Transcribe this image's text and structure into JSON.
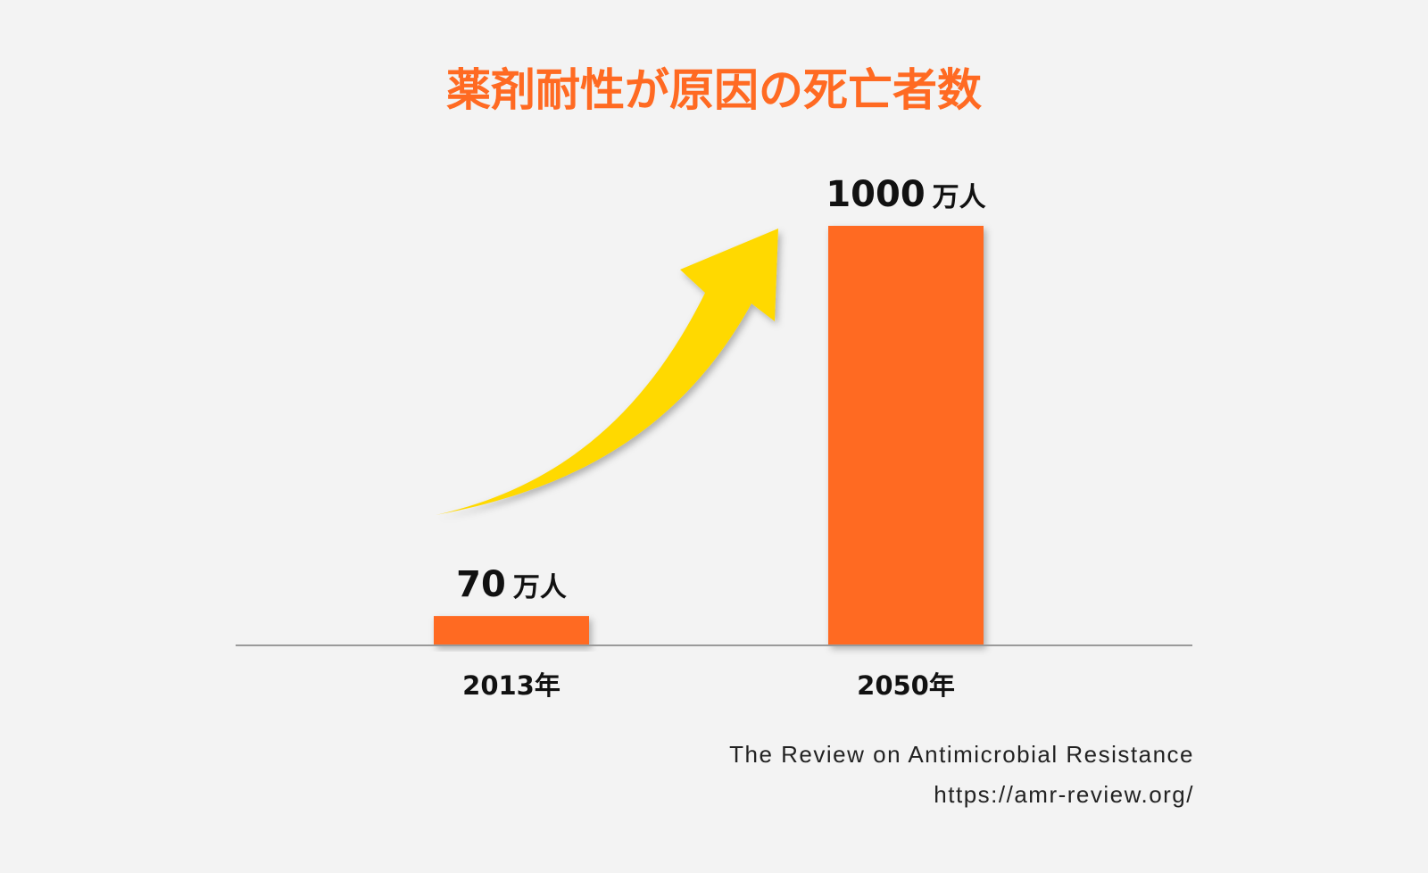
{
  "chart_data": {
    "type": "bar",
    "title": "薬剤耐性が原因の死亡者数",
    "categories": [
      "2013年",
      "2050年"
    ],
    "values": [
      70,
      1000
    ],
    "value_labels": [
      "70",
      "1000"
    ],
    "unit": "万人",
    "ylim": [
      0,
      1000
    ],
    "grid": false,
    "legend": "none"
  },
  "colors": {
    "title": "#ff6a22",
    "bar": "#ff6a22",
    "arrow": "#ffd900",
    "baseline": "#9a9a9a",
    "text": "#111111",
    "background": "#f3f3f3"
  },
  "decorations": {
    "arrow": "curved-up-arrow-icon"
  },
  "source": {
    "line1": "The Review on Antimicrobial Resistance",
    "line2": "https://amr-review.org/"
  }
}
